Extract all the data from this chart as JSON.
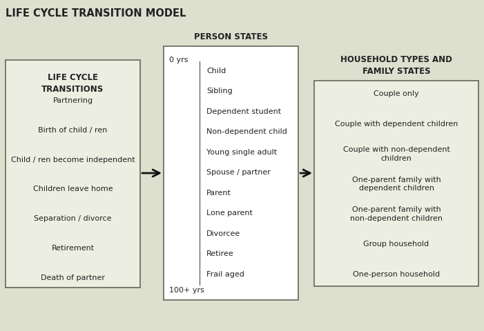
{
  "title": "LIFE CYCLE TRANSITION MODEL",
  "background_color": "#dde0cf",
  "box1_fill": "#eceee2",
  "box2_fill": "#ffffff",
  "box3_fill": "#eceee2",
  "box_edge_color": "#666655",
  "col1_header": "LIFE CYCLE\nTRANSITIONS",
  "col2_header": "PERSON STATES",
  "col3_header": "HOUSEHOLD TYPES AND\nFAMILY STATES",
  "col1_items": [
    "Partnering",
    "Birth of child / ren",
    "Child / ren become independent",
    "Children leave home",
    "Separation / divorce",
    "Retirement",
    "Death of partner"
  ],
  "col2_items": [
    "Child",
    "Sibling",
    "Dependent student",
    "Non-dependent child",
    "Young single adult",
    "Spouse / partner",
    "Parent",
    "Lone parent",
    "Divorcee",
    "Retiree",
    "Frail aged"
  ],
  "col2_top_label": "0 yrs",
  "col2_bottom_label": "100+ yrs",
  "col3_items": [
    "Couple only",
    "Couple with dependent children",
    "Couple with non-dependent\nchildren",
    "One-parent family with\ndependent children",
    "One-parent family with\nnon-dependent children",
    "Group household",
    "One-person household"
  ],
  "title_fontsize": 10.5,
  "header_fontsize": 8.5,
  "item_fontsize": 8,
  "text_color": "#222222",
  "arrow_color": "#111111"
}
